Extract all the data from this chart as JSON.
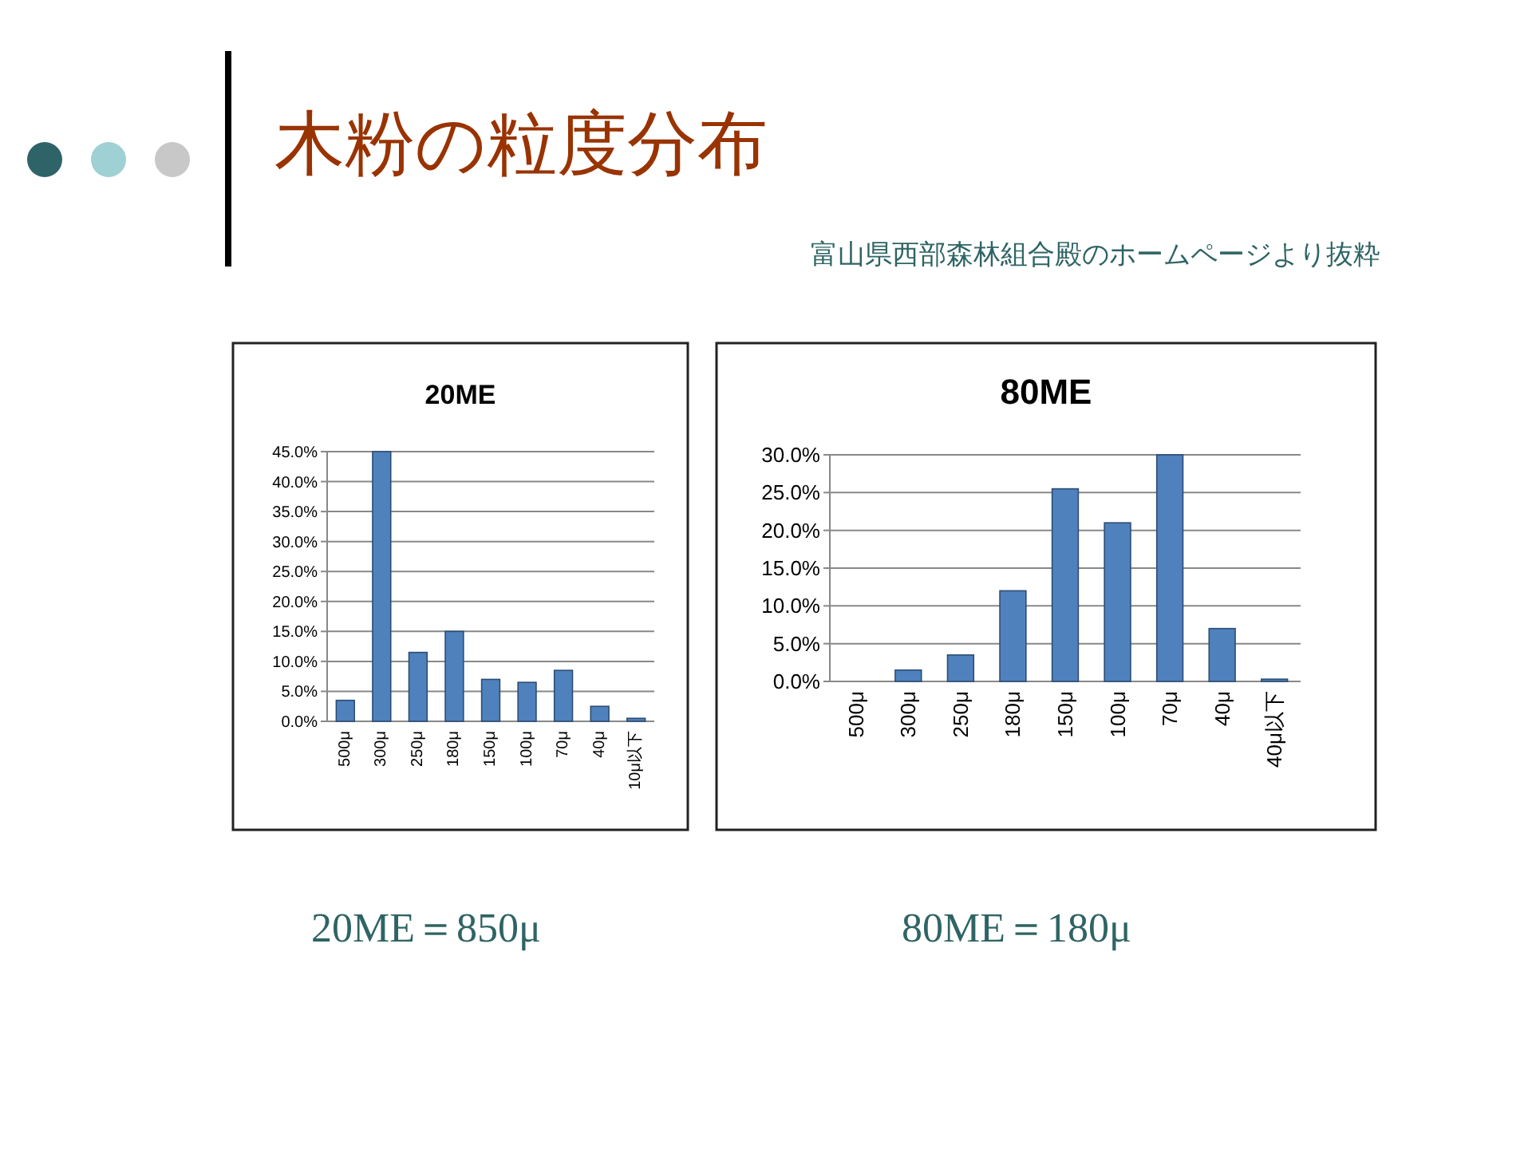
{
  "chart_data": [
    {
      "type": "other",
      "title": "木粉の粒度分布",
      "subtitle": "富山県西部森林組合殿のホームページより抜粋"
    },
    {
      "type": "bar",
      "title": "20ME",
      "categories": [
        "500μ",
        "300μ",
        "250μ",
        "180μ",
        "150μ",
        "100μ",
        "70μ",
        "40μ",
        "10μ以下"
      ],
      "values": [
        3.5,
        45,
        11.5,
        15,
        7,
        6.5,
        8.5,
        2.5,
        0.5
      ],
      "color": "#4f81bd",
      "ylim": [
        0,
        45
      ],
      "yticks": [
        {
          "value": 0,
          "label": "0.0%"
        },
        {
          "value": 5,
          "label": "5.0%"
        },
        {
          "value": 10,
          "label": "10.0%"
        },
        {
          "value": 15,
          "label": "15.0%"
        },
        {
          "value": 20,
          "label": "20.0%"
        },
        {
          "value": 25,
          "label": "25.0%"
        },
        {
          "value": 30,
          "label": "30.0%"
        },
        {
          "value": 35,
          "label": "35.0%"
        },
        {
          "value": 40,
          "label": "40.0%"
        },
        {
          "value": 45,
          "label": "45.0%"
        }
      ],
      "grid": true,
      "annotations": [
        "20ME＝850μ"
      ]
    },
    {
      "type": "bar",
      "title": "80ME",
      "categories": [
        "500μ",
        "300μ",
        "250μ",
        "180μ",
        "150μ",
        "100μ",
        "70μ",
        "40μ",
        "40μ以下"
      ],
      "values": [
        0,
        1.5,
        3.5,
        12,
        25.5,
        21,
        30,
        7,
        0.3
      ],
      "color": "#4f81bd",
      "ylim": [
        0,
        30
      ],
      "yticks": [
        {
          "value": 0,
          "label": "0.0%"
        },
        {
          "value": 5,
          "label": "5.0%"
        },
        {
          "value": 10,
          "label": "10.0%"
        },
        {
          "value": 15,
          "label": "15.0%"
        },
        {
          "value": 20,
          "label": "20.0%"
        },
        {
          "value": 25,
          "label": "25.0%"
        },
        {
          "value": 30,
          "label": "30.0%"
        }
      ],
      "grid": true,
      "annotations": [
        "80ME＝180μ"
      ]
    }
  ]
}
